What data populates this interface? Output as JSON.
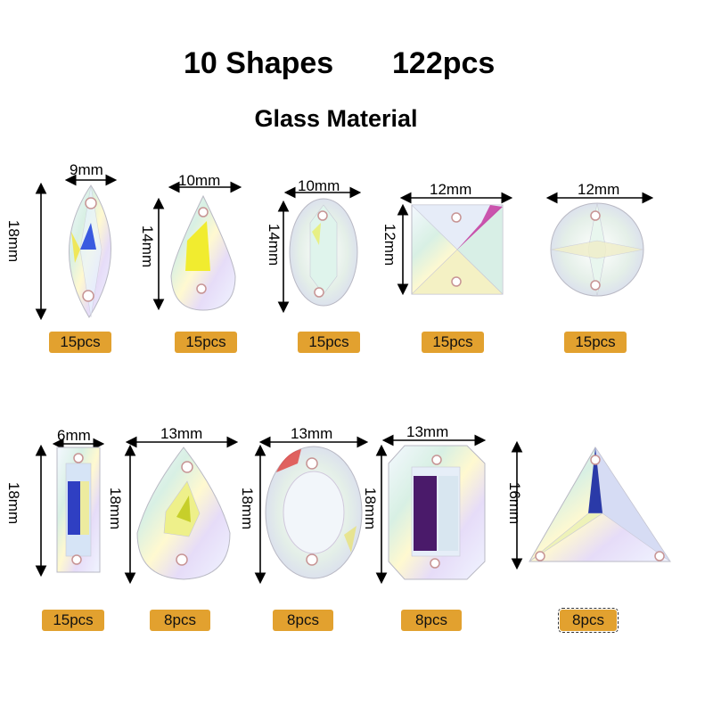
{
  "header": {
    "shapes_label": "10  Shapes",
    "count_label": "122pcs",
    "material": "Glass Material"
  },
  "colors": {
    "badge": "#e2a12f",
    "text": "#000000"
  },
  "items": [
    {
      "shape": "marquise",
      "width": "9mm",
      "height": "18mm",
      "qty": "15pcs"
    },
    {
      "shape": "teardrop",
      "width": "10mm",
      "height": "14mm",
      "qty": "15pcs"
    },
    {
      "shape": "oval",
      "width": "10mm",
      "height": "14mm",
      "qty": "15pcs"
    },
    {
      "shape": "square",
      "width": "12mm",
      "height": "12mm",
      "qty": "15pcs"
    },
    {
      "shape": "round",
      "width": "12mm",
      "height": "",
      "qty": "15pcs"
    },
    {
      "shape": "rectangle",
      "width": "6mm",
      "height": "18mm",
      "qty": "15pcs"
    },
    {
      "shape": "teardrop",
      "width": "13mm",
      "height": "18mm",
      "qty": "8pcs"
    },
    {
      "shape": "oval",
      "width": "13mm",
      "height": "18mm",
      "qty": "8pcs"
    },
    {
      "shape": "octagon",
      "width": "13mm",
      "height": "18mm",
      "qty": "8pcs"
    },
    {
      "shape": "triangle",
      "width": "",
      "height": "16mm",
      "qty": "8pcs"
    }
  ]
}
